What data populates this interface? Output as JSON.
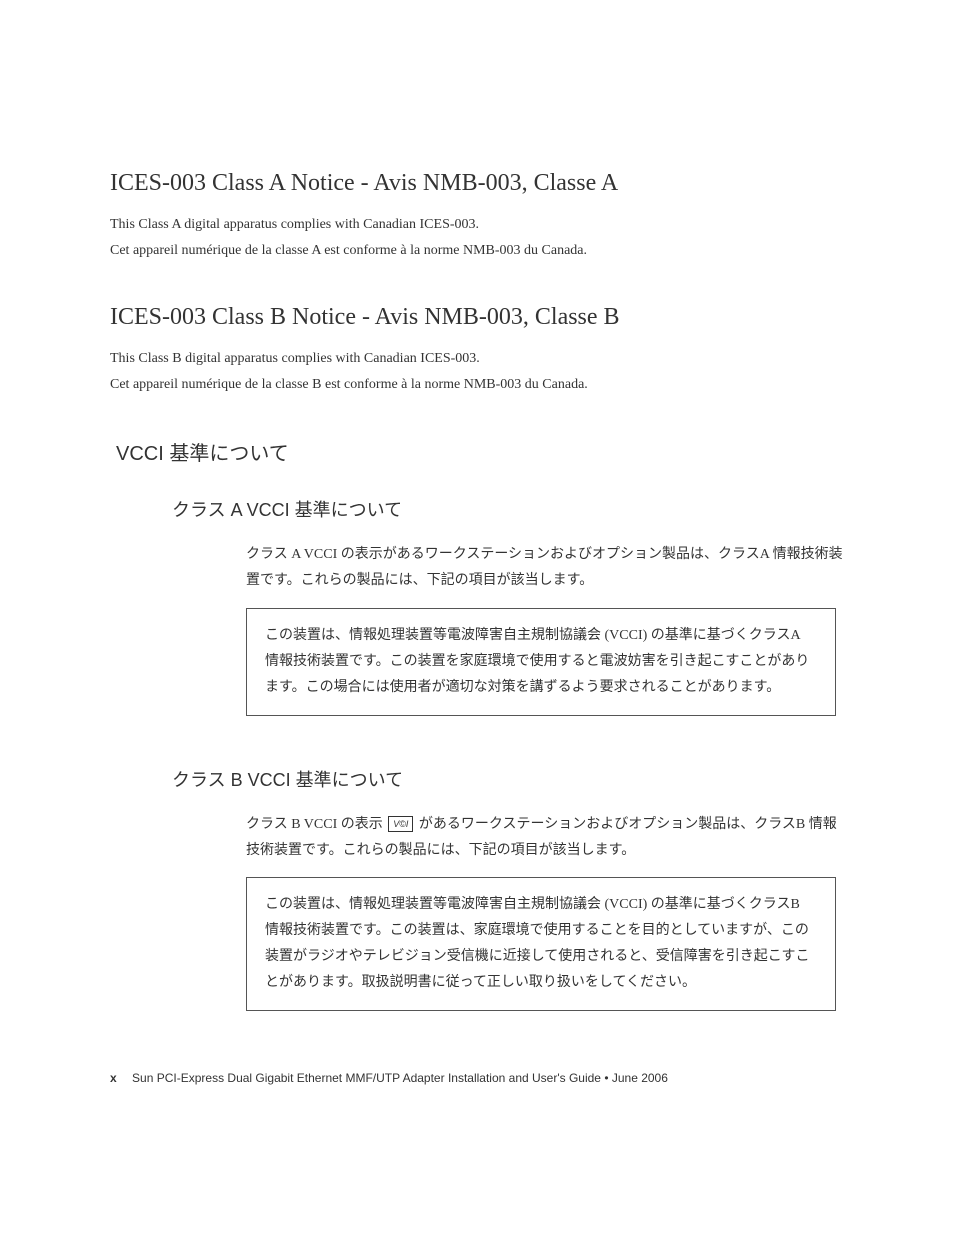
{
  "colors": {
    "text": "#333333",
    "border": "#555555",
    "background": "#ffffff"
  },
  "typography": {
    "serif_family": "Palatino / Times New Roman",
    "sans_family": "Arial / Helvetica",
    "jp_family": "MS Mincho / Hiragino Mincho",
    "heading_size_pt": 24,
    "subheading_size_pt": 20,
    "subsubheading_size_pt": 18,
    "body_size_pt": 14,
    "footer_size_pt": 12
  },
  "sections": {
    "classA": {
      "heading": "ICES-003 Class A Notice - Avis NMB-003, Classe A",
      "line1": "This Class A digital apparatus complies with Canadian ICES-003.",
      "line2": "Cet appareil numérique de la classe A est conforme à la norme NMB-003 du Canada."
    },
    "classB": {
      "heading": "ICES-003 Class B Notice - Avis NMB-003, Classe B",
      "line1": "This Class B digital apparatus complies with Canadian ICES-003.",
      "line2": "Cet appareil numérique de la classe B est conforme à la norme NMB-003 du Canada."
    },
    "vcci": {
      "heading": "VCCI 基準について",
      "classA": {
        "heading": "クラス A VCCI 基準について",
        "intro": "クラス A VCCI の表示があるワークステーションおよびオプション製品は、クラスA 情報技術装置です。これらの製品には、下記の項目が該当します。",
        "box": "この装置は、情報処理装置等電波障害自主規制協議会 (VCCI) の基準に基づくクラスA 情報技術装置です。この装置を家庭環境で使用すると電波妨害を引き起こすことがあります。この場合には使用者が適切な対策を講ずるよう要求されることがあります。"
      },
      "classB": {
        "heading": "クラス B VCCI 基準について",
        "intro_before_mark": "クラス B VCCI の表示 ",
        "mark_text": "V©I",
        "intro_after_mark": " があるワークステーションおよびオプション製品は、クラスB 情報技術装置です。これらの製品には、下記の項目が該当します。",
        "box": "この装置は、情報処理装置等電波障害自主規制協議会 (VCCI) の基準に基づくクラスB 情報技術装置です。この装置は、家庭環境で使用することを目的としていますが、この装置がラジオやテレビジョン受信機に近接して使用されると、受信障害を引き起こすことがあります。取扱説明書に従って正しい取り扱いをしてください。"
      }
    }
  },
  "footer": {
    "page_number": "x",
    "title": "Sun PCI-Express Dual Gigabit Ethernet MMF/UTP Adapter Installation and User's Guide  •  June 2006"
  }
}
